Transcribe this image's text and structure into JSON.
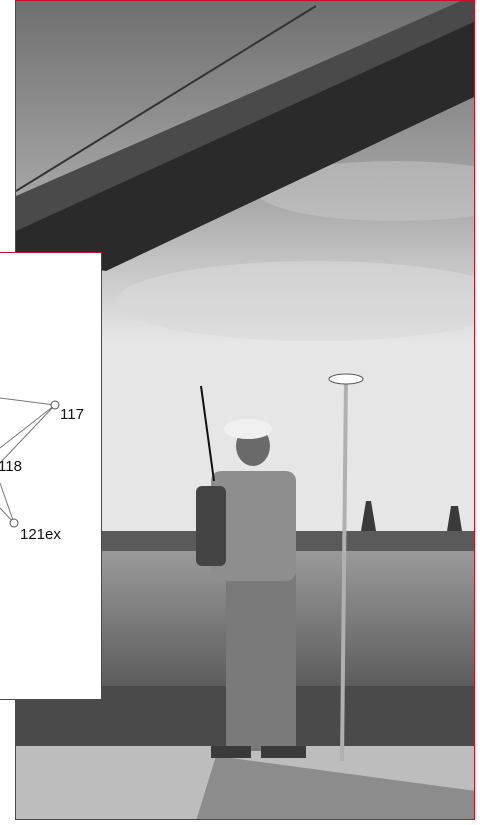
{
  "colors": {
    "frame_border": "#c8102e",
    "sky_top": "#8a8a8a",
    "water": "#6a6a6a"
  },
  "network_inset": {
    "points": [
      {
        "label": "117"
      },
      {
        "label": "118"
      },
      {
        "label": "121ex"
      }
    ]
  }
}
